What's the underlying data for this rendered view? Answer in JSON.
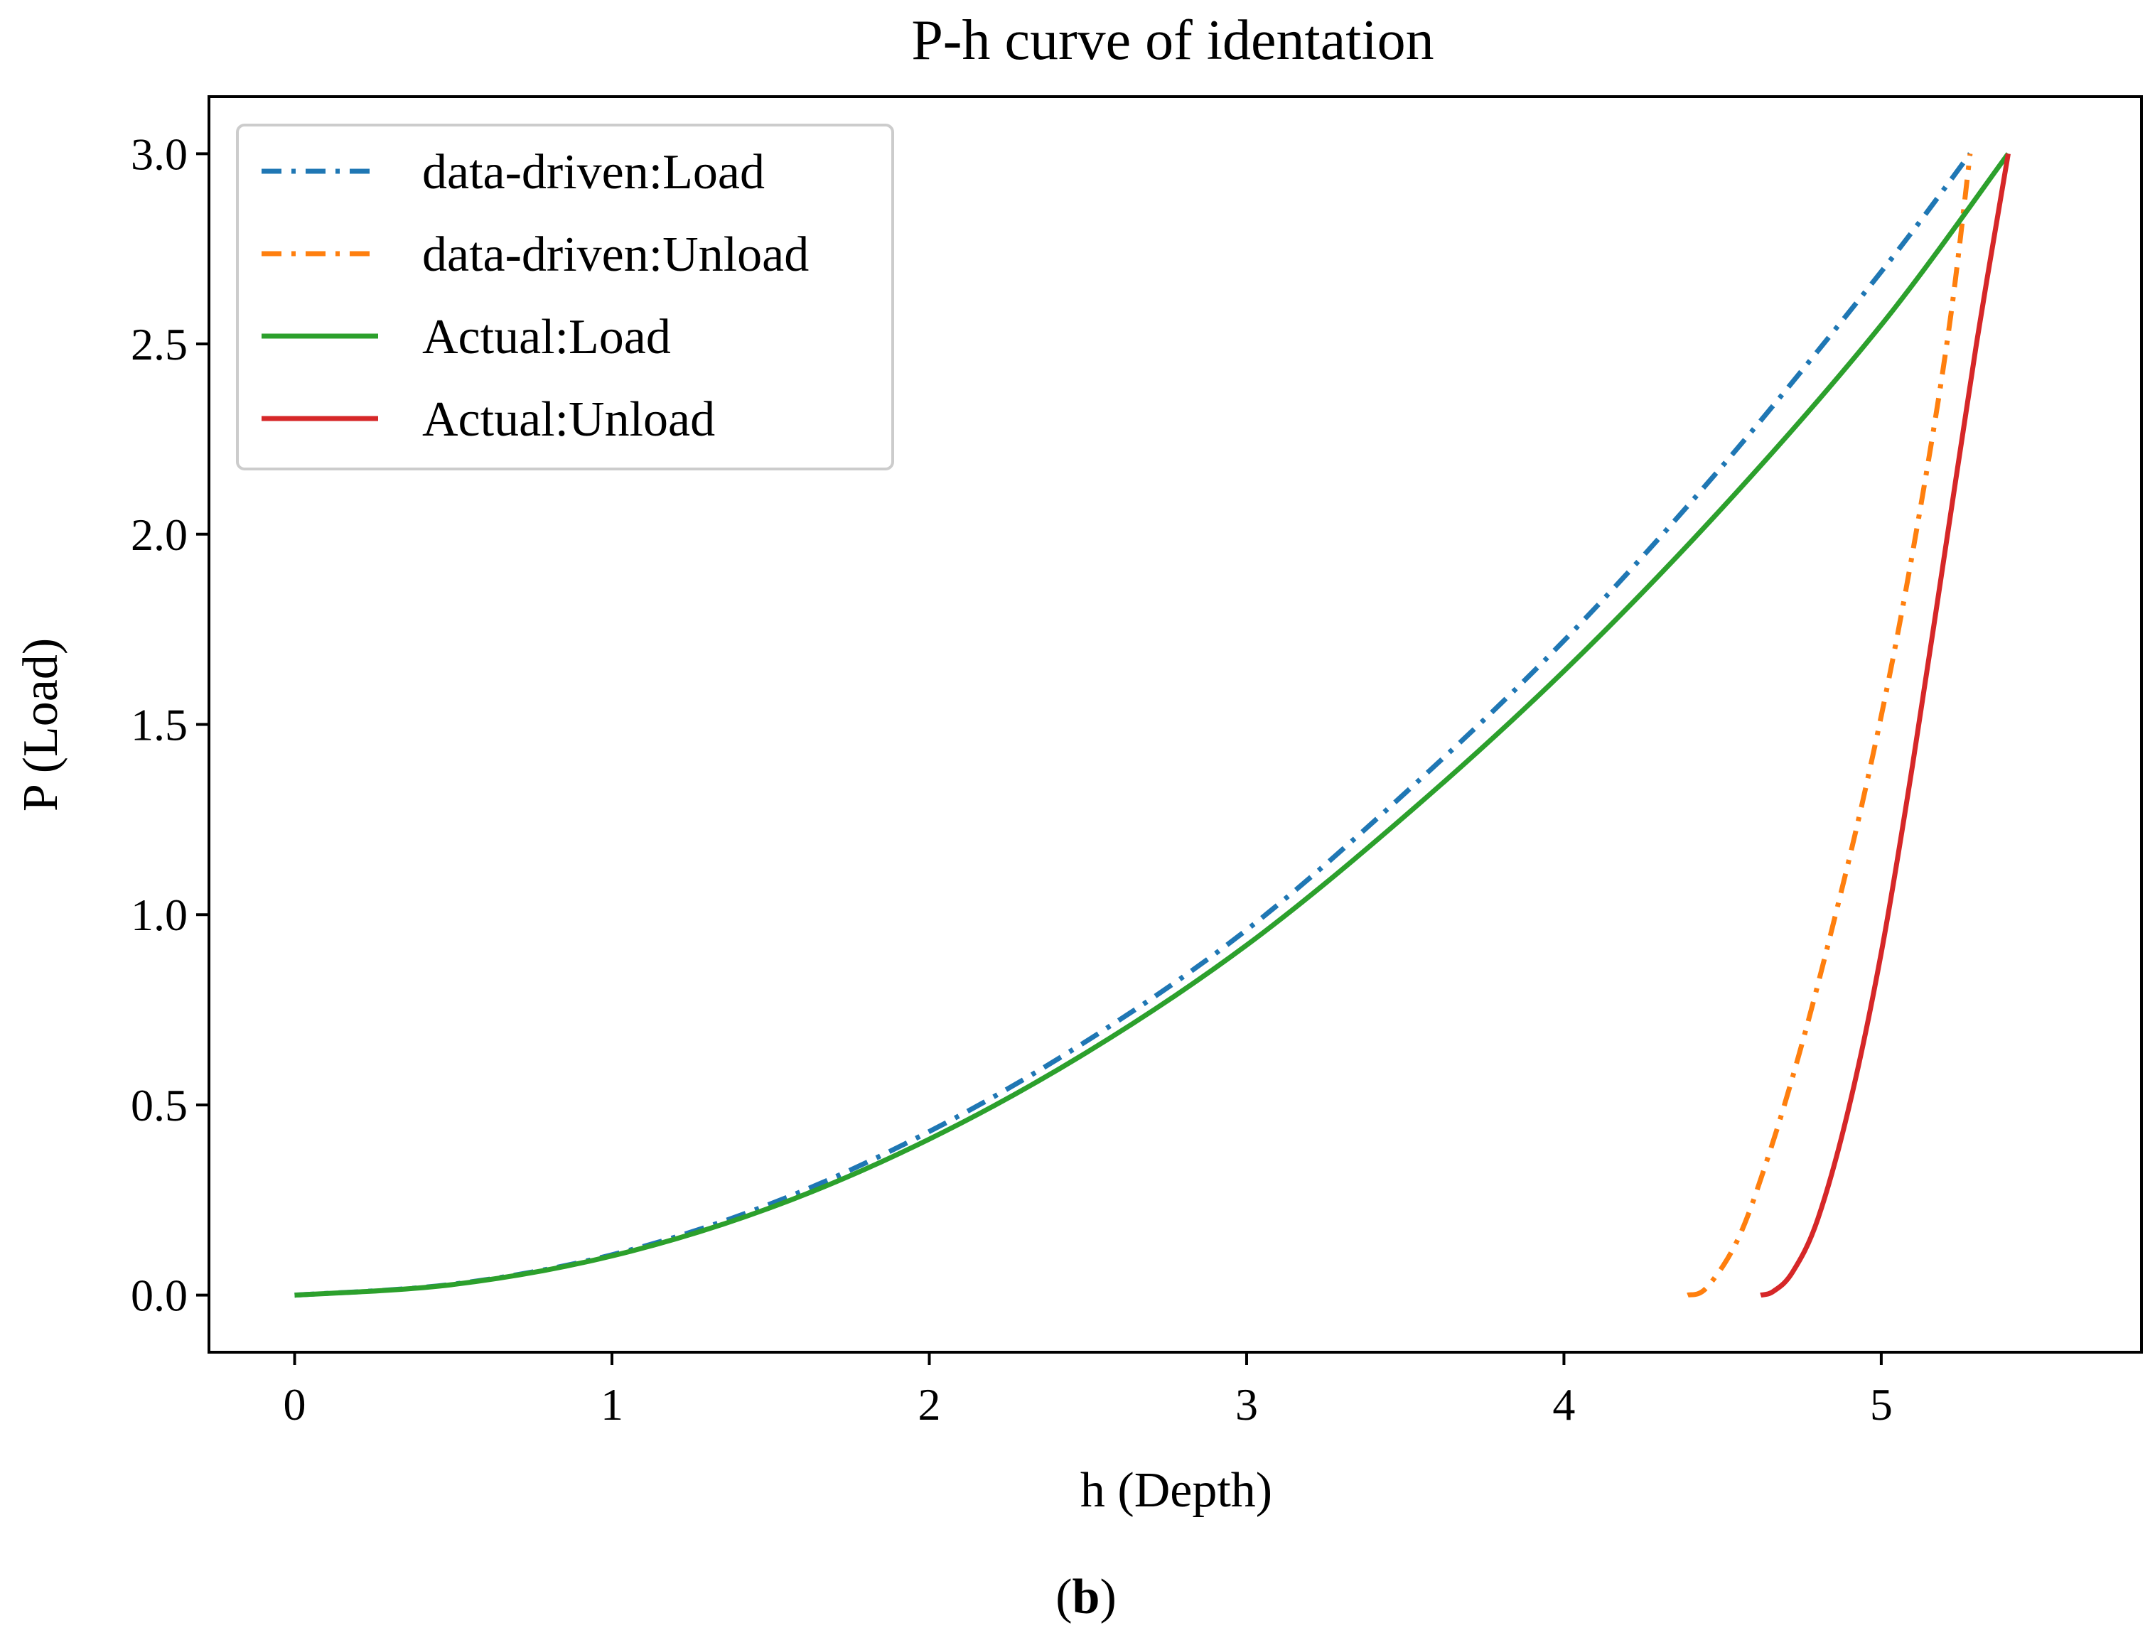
{
  "chart_data": {
    "type": "line",
    "title": "P-h curve of identation",
    "xlabel": "h (Depth)",
    "ylabel": "P (Load)",
    "xlim": [
      -0.27,
      5.82
    ],
    "ylim": [
      -0.15,
      3.15
    ],
    "xticks": [
      0,
      1,
      2,
      3,
      4,
      5
    ],
    "xtick_labels": [
      "0",
      "1",
      "2",
      "3",
      "4",
      "5"
    ],
    "yticks": [
      0.0,
      0.5,
      1.0,
      1.5,
      2.0,
      2.5,
      3.0
    ],
    "ytick_labels": [
      "0.0",
      "0.5",
      "1.0",
      "1.5",
      "2.0",
      "2.5",
      "3.0"
    ],
    "grid": false,
    "legend_position": "top-left",
    "series": [
      {
        "name": "data-driven:Load",
        "color": "#1f77b4",
        "style": "dashdot",
        "x": [
          0,
          0.5,
          1.0,
          1.5,
          2.0,
          2.5,
          3.0,
          3.5,
          4.0,
          4.5,
          5.0,
          5.28
        ],
        "y": [
          0,
          0.029,
          0.106,
          0.24,
          0.43,
          0.67,
          0.96,
          1.32,
          1.72,
          2.18,
          2.69,
          3.0
        ]
      },
      {
        "name": "data-driven:Unload",
        "color": "#ff7f0e",
        "style": "dashdot",
        "x": [
          4.39,
          4.45,
          4.55,
          4.65,
          4.75,
          4.85,
          4.95,
          5.05,
          5.15,
          5.22,
          5.28
        ],
        "y": [
          0,
          0.02,
          0.15,
          0.38,
          0.66,
          0.98,
          1.33,
          1.73,
          2.2,
          2.58,
          3.0
        ]
      },
      {
        "name": "Actual:Load",
        "color": "#2ca02c",
        "style": "solid",
        "x": [
          0,
          0.5,
          1.0,
          1.5,
          2.0,
          2.5,
          3.0,
          3.5,
          4.0,
          4.5,
          5.0,
          5.4
        ],
        "y": [
          0,
          0.028,
          0.103,
          0.23,
          0.41,
          0.64,
          0.92,
          1.26,
          1.64,
          2.07,
          2.55,
          3.0
        ]
      },
      {
        "name": "Actual:Unload",
        "color": "#d62728",
        "style": "solid",
        "x": [
          4.62,
          4.66,
          4.72,
          4.8,
          4.9,
          5.0,
          5.1,
          5.2,
          5.3,
          5.4
        ],
        "y": [
          0,
          0.01,
          0.06,
          0.2,
          0.5,
          0.9,
          1.4,
          1.95,
          2.5,
          3.0
        ]
      }
    ]
  },
  "caption": {
    "open": "(",
    "bold": "b",
    "close": ")"
  }
}
